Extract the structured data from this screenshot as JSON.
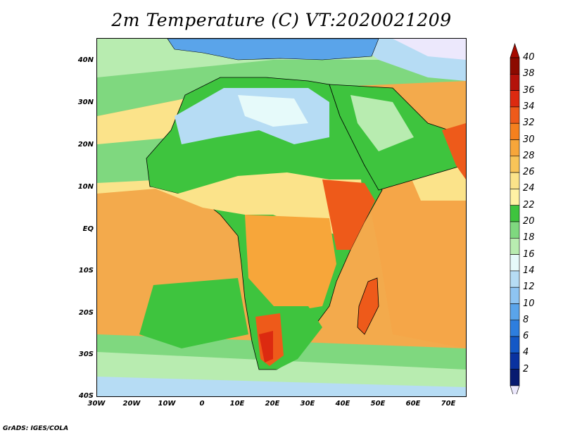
{
  "title": "2m Temperature (C) VT:2020021209",
  "footer": "GrADS: IGES/COLA",
  "lat_labels": [
    "40N",
    "30N",
    "20N",
    "10N",
    "EQ",
    "10S",
    "20S",
    "30S",
    "40S"
  ],
  "lon_labels": [
    "30W",
    "20W",
    "10W",
    "0",
    "10E",
    "20E",
    "30E",
    "40E",
    "50E",
    "60E",
    "70E"
  ],
  "colorbar": {
    "levels": [
      "40",
      "38",
      "36",
      "34",
      "32",
      "30",
      "28",
      "26",
      "24",
      "22",
      "20",
      "18",
      "16",
      "14",
      "12",
      "10",
      "8",
      "6",
      "4",
      "2"
    ],
    "colors": [
      "#8c0a00",
      "#b4120a",
      "#dc2a10",
      "#ee5a1a",
      "#f5801e",
      "#f7a63a",
      "#f8c458",
      "#fbe38a",
      "#fff2a4",
      "#3ec43e",
      "#7fd87f",
      "#b8ecb0",
      "#e6fafa",
      "#b6dcf4",
      "#8ec4f2",
      "#5aa4ea",
      "#2e7ede",
      "#1458c6",
      "#0a32a0",
      "#081a70"
    ],
    "top_color": "#a60a00",
    "bottom_color": "#ece8fc"
  },
  "ocean_color": "#f3aa4c"
}
